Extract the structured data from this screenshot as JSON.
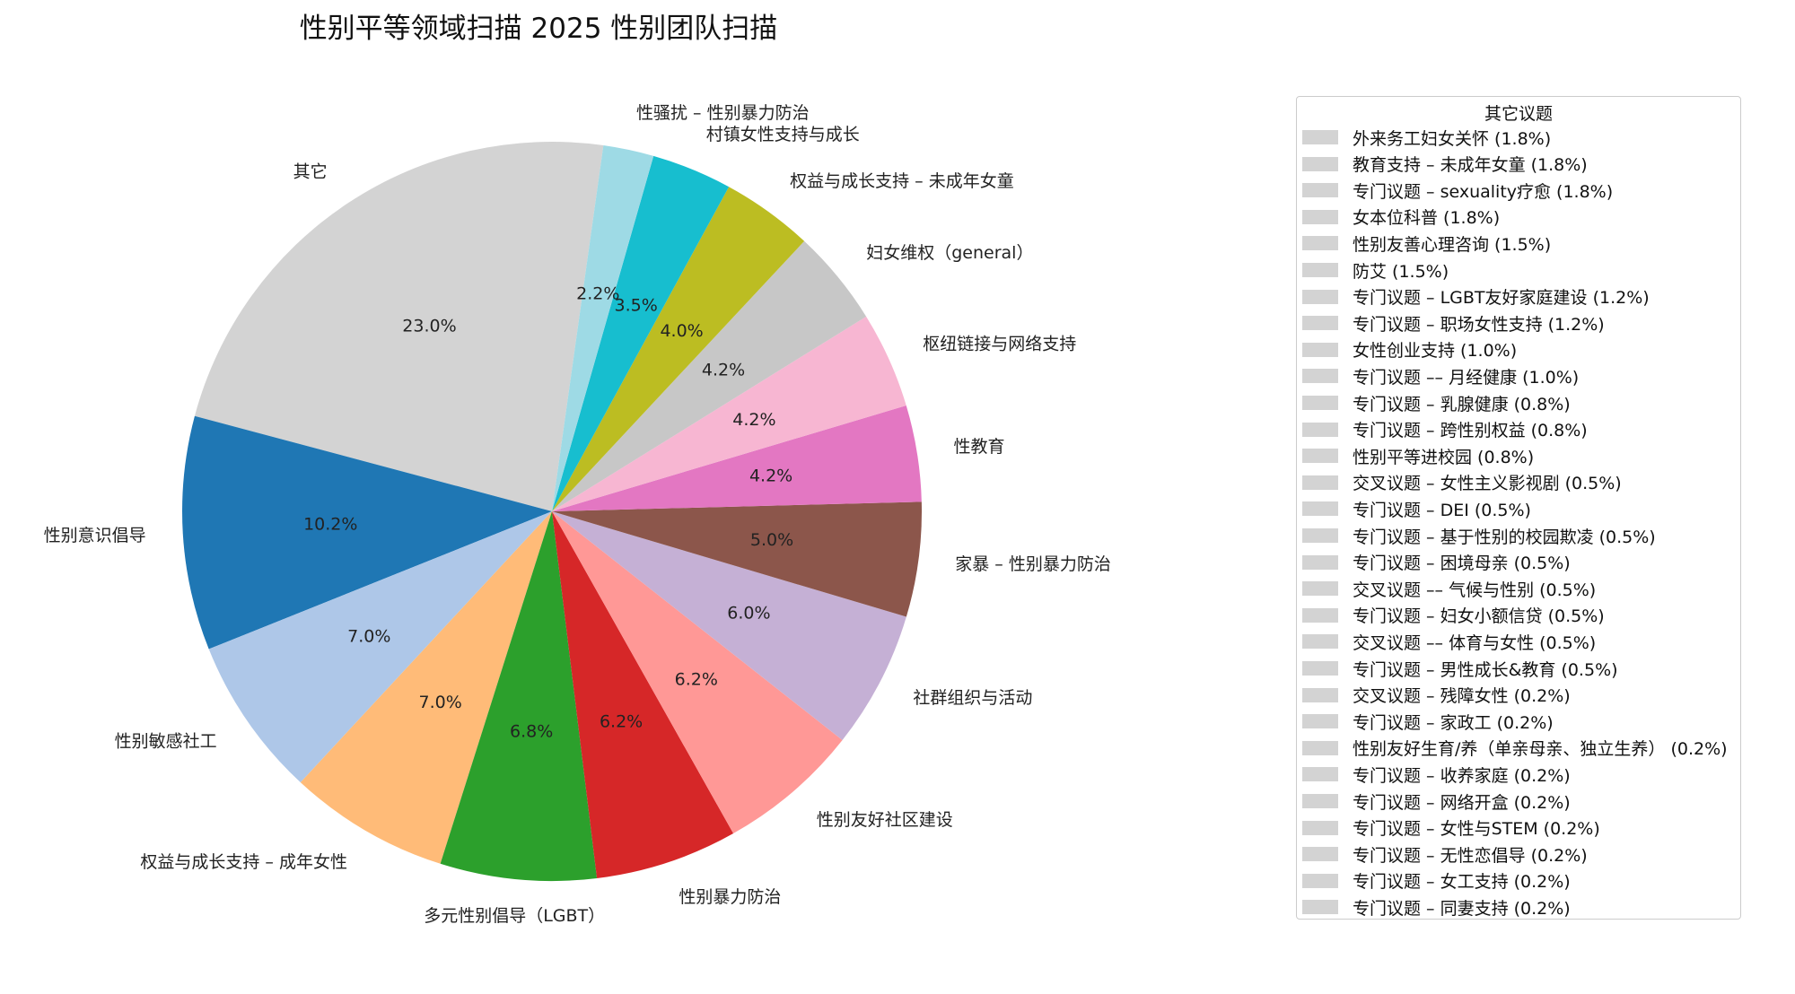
{
  "chart_data": {
    "type": "pie",
    "title": "性别平等领域扫描 2025 性别团队扫描",
    "slices": [
      {
        "label": "其它",
        "pct_label": "23.0%",
        "value": 23.0,
        "color": "#d3d3d3"
      },
      {
        "label": "性别意识倡导",
        "pct_label": "10.2%",
        "value": 10.2,
        "color": "#1f77b4"
      },
      {
        "label": "性别敏感社工",
        "pct_label": "7.0%",
        "value": 7.0,
        "color": "#aec7e8"
      },
      {
        "label": "权益与成长支持 – 成年女性",
        "pct_label": "7.0%",
        "value": 7.0,
        "color": "#ffbb78"
      },
      {
        "label": "多元性别倡导（LGBT）",
        "pct_label": "6.8%",
        "value": 6.8,
        "color": "#2ca02c"
      },
      {
        "label": "性别暴力防治",
        "pct_label": "6.2%",
        "value": 6.2,
        "color": "#d62728"
      },
      {
        "label": "性别友好社区建设",
        "pct_label": "6.2%",
        "value": 6.2,
        "color": "#ff9896"
      },
      {
        "label": "社群组织与活动",
        "pct_label": "6.0%",
        "value": 6.0,
        "color": "#c5b0d5"
      },
      {
        "label": "家暴 – 性别暴力防治",
        "pct_label": "5.0%",
        "value": 5.0,
        "color": "#8c564b"
      },
      {
        "label": "性教育",
        "pct_label": "4.2%",
        "value": 4.2,
        "color": "#e377c2"
      },
      {
        "label": "枢纽链接与网络支持",
        "pct_label": "4.2%",
        "value": 4.2,
        "color": "#f7b6d2"
      },
      {
        "label": "妇女维权（general）",
        "pct_label": "4.2%",
        "value": 4.2,
        "color": "#c7c7c7"
      },
      {
        "label": "权益与成长支持 – 未成年女童",
        "pct_label": "4.0%",
        "value": 4.0,
        "color": "#bcbd22"
      },
      {
        "label": "村镇女性支持与成长",
        "pct_label": "3.5%",
        "value": 3.5,
        "color": "#17becf"
      },
      {
        "label": "性骚扰 – 性别暴力防治",
        "pct_label": "2.2%",
        "value": 2.2,
        "color": "#9edae5"
      }
    ],
    "legend_title": "其它议题",
    "legend_color": "#d3d3d3",
    "legend_items": [
      "外来务工妇女关怀 (1.8%)",
      "教育支持 – 未成年女童 (1.8%)",
      "专门议题 – sexuality疗愈 (1.8%)",
      "女本位科普 (1.8%)",
      "性别友善心理咨询 (1.5%)",
      "防艾 (1.5%)",
      "专门议题 – LGBT友好家庭建设 (1.2%)",
      "专门议题 – 职场女性支持 (1.2%)",
      "女性创业支持 (1.0%)",
      "专门议题 –– 月经健康 (1.0%)",
      "专门议题 – 乳腺健康 (0.8%)",
      "专门议题 – 跨性别权益 (0.8%)",
      "性别平等进校园 (0.8%)",
      "交叉议题 – 女性主义影视剧 (0.5%)",
      "专门议题 – DEI (0.5%)",
      "专门议题 – 基于性别的校园欺凌 (0.5%)",
      "专门议题 – 困境母亲 (0.5%)",
      "交叉议题 –– 气候与性别 (0.5%)",
      "专门议题 – 妇女小额信贷 (0.5%)",
      "交叉议题 –– 体育与女性 (0.5%)",
      "专门议题 – 男性成长&教育 (0.5%)",
      "交叉议题 – 残障女性 (0.2%)",
      "专门议题 – 家政工 (0.2%)",
      "性别友好生育/养（单亲母亲、独立生养） (0.2%)",
      "专门议题 – 收养家庭 (0.2%)",
      "专门议题 – 网络开盒 (0.2%)",
      "专门议题 – 女性与STEM (0.2%)",
      "专门议题 – 无性恋倡导 (0.2%)",
      "专门议题 – 女工支持 (0.2%)",
      "专门议题 – 同妻支持 (0.2%)"
    ]
  }
}
